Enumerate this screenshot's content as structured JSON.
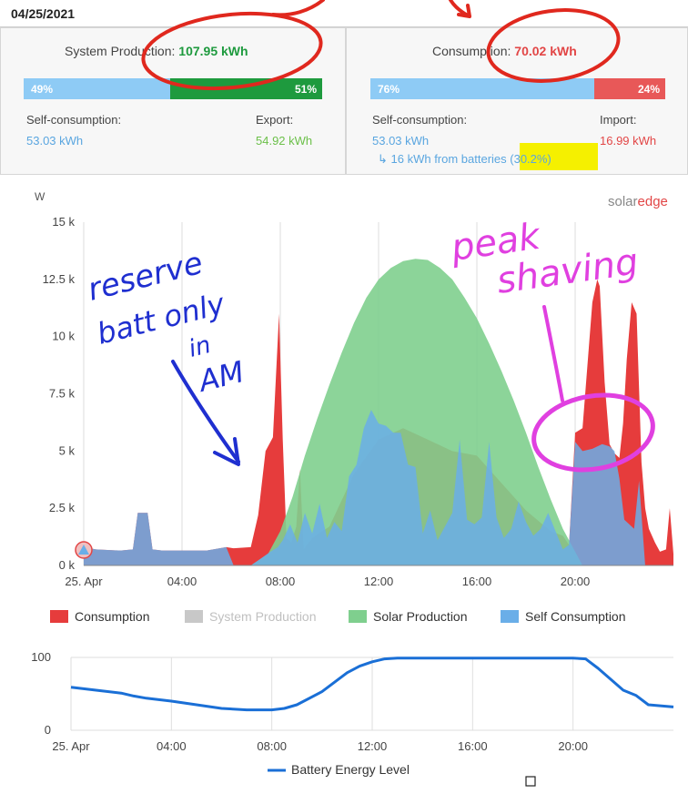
{
  "date": "04/25/2021",
  "production": {
    "label": "System Production:",
    "value": "107.95 kWh",
    "bar": {
      "left_pct_label": "49%",
      "right_pct_label": "51%",
      "left_fraction": 0.49
    },
    "self_consumption_label": "Self-consumption:",
    "self_consumption_value": "53.03 kWh",
    "export_label": "Export:",
    "export_value": "54.92 kWh"
  },
  "consumption": {
    "label": "Consumption:",
    "value": "70.02 kWh",
    "bar": {
      "left_pct_label": "76%",
      "right_pct_label": "24%",
      "left_fraction": 0.76
    },
    "self_consumption_label": "Self-consumption:",
    "self_consumption_value": "53.03 kWh",
    "import_label": "Import:",
    "import_value": "16.99 kWh",
    "batteries_note": "↳ 16 kWh from batteries (30.2%)"
  },
  "brand": {
    "part1": "solar",
    "part2": "edge"
  },
  "annotations": {
    "left_note": [
      "reserve",
      "batt only",
      "in",
      "AM"
    ],
    "right_note": [
      "peak",
      "shaving"
    ]
  },
  "colors": {
    "consumption": "#e63c3c",
    "system_production": "#c8c8c8",
    "solar_production": "#7fcf8e",
    "self_consumption": "#6aaee8",
    "battery_line": "#1a6fd6",
    "export_green": "#1e9a3e",
    "blue_text": "#5aa6e0",
    "red_text": "#e24646",
    "annotation_red": "#e0281e",
    "annotation_blue": "#1f2fd0",
    "annotation_magenta": "#e040e0",
    "highlight_yellow": "#f5f000"
  },
  "chart_data": [
    {
      "type": "area",
      "ylabel": "W",
      "ylim": [
        0,
        15000
      ],
      "y_tick_labels": [
        "0 k",
        "2.5 k",
        "5 k",
        "7.5 k",
        "10 k",
        "12.5 k",
        "15 k"
      ],
      "y_tick_values": [
        0,
        2500,
        5000,
        7500,
        10000,
        12500,
        15000
      ],
      "x_tick_labels": [
        "25. Apr",
        "04:00",
        "08:00",
        "12:00",
        "16:00",
        "20:00"
      ],
      "x_tick_hours": [
        0,
        4,
        8,
        12,
        16,
        20
      ],
      "xlim_hours": [
        0,
        24
      ],
      "legend": [
        "Consumption",
        "System Production",
        "Solar Production",
        "Self Consumption"
      ],
      "legend_placement": "bottom",
      "grid": "vertical",
      "series": [
        {
          "name": "Consumption",
          "hours": [
            0,
            0.5,
            1.5,
            2.0,
            2.2,
            2.6,
            2.8,
            3.2,
            4.0,
            5.0,
            5.8,
            6.1,
            6.8,
            7.1,
            7.4,
            7.7,
            7.95,
            8.1,
            8.25,
            8.45,
            8.65,
            8.8,
            8.95,
            9.3,
            10,
            11,
            12,
            13,
            14,
            15,
            16,
            17,
            18,
            19,
            19.5,
            19.75,
            20.0,
            20.3,
            20.7,
            20.9,
            21.0,
            21.2,
            21.4,
            21.6,
            21.8,
            21.95,
            22.1,
            22.3,
            22.5,
            22.7,
            22.85,
            23.0,
            23.25,
            23.45,
            23.7,
            23.85,
            24.0
          ],
          "values": [
            800,
            700,
            650,
            700,
            2300,
            2300,
            700,
            650,
            650,
            650,
            800,
            750,
            800,
            2200,
            5000,
            5600,
            11000,
            5500,
            1200,
            1000,
            1700,
            4200,
            700,
            1200,
            1700,
            4000,
            5500,
            6000,
            5500,
            5000,
            4800,
            3600,
            2400,
            1500,
            1300,
            900,
            5800,
            6000,
            11500,
            12500,
            12200,
            8000,
            5300,
            4900,
            4700,
            6200,
            9000,
            11500,
            11000,
            4500,
            2500,
            1600,
            1000,
            600,
            700,
            2500,
            500
          ]
        },
        {
          "name": "Solar Production",
          "hours": [
            6.8,
            7.5,
            8.0,
            8.5,
            9.0,
            9.5,
            10.0,
            10.5,
            11.0,
            11.5,
            12.0,
            12.5,
            13.0,
            13.5,
            14.0,
            14.5,
            15.0,
            15.5,
            16.0,
            16.5,
            17.0,
            17.5,
            18.0,
            18.5,
            19.0,
            19.5,
            20.0,
            20.3
          ],
          "values": [
            0,
            500,
            1500,
            3000,
            4800,
            6400,
            7900,
            9300,
            10600,
            11700,
            12500,
            13000,
            13300,
            13400,
            13350,
            13000,
            12500,
            11700,
            10800,
            9700,
            8500,
            7200,
            5800,
            4300,
            2900,
            1600,
            600,
            0
          ]
        },
        {
          "name": "Self Consumption",
          "hours": [
            0,
            0.5,
            1.5,
            2.0,
            2.2,
            2.6,
            2.8,
            3.2,
            4.0,
            5.0,
            5.8,
            6.1,
            6.8,
            7.2,
            7.6,
            7.9,
            8.1,
            8.4,
            8.7,
            9.0,
            9.3,
            9.6,
            9.9,
            10.2,
            10.5,
            10.8,
            11.1,
            11.4,
            11.7,
            12.0,
            12.3,
            12.6,
            12.9,
            13.2,
            13.5,
            13.8,
            14.1,
            14.4,
            14.7,
            15.0,
            15.3,
            15.6,
            15.9,
            16.2,
            16.5,
            16.8,
            17.1,
            17.4,
            17.7,
            18.0,
            18.3,
            18.6,
            18.9,
            19.2,
            19.5,
            19.75,
            20.0,
            20.3,
            20.7,
            21.1,
            21.4,
            21.6,
            21.8,
            22.0,
            22.2,
            22.4,
            22.6,
            22.85
          ],
          "values": [
            800,
            700,
            650,
            700,
            2300,
            2300,
            700,
            650,
            650,
            650,
            800,
            0,
            0,
            300,
            600,
            800,
            1100,
            1800,
            1000,
            2300,
            1400,
            2700,
            1200,
            1900,
            1500,
            3900,
            4400,
            6000,
            6800,
            6200,
            6100,
            5800,
            5800,
            4400,
            4300,
            1400,
            2400,
            1100,
            1700,
            2300,
            5500,
            2000,
            1800,
            2100,
            5400,
            2100,
            1200,
            1600,
            2800,
            1900,
            1300,
            1600,
            2300,
            1500,
            700,
            900,
            5400,
            5000,
            5100,
            5300,
            5200,
            5000,
            3800,
            2000,
            1800,
            1600,
            3700,
            0
          ]
        },
        {
          "name": "System Production",
          "hours": [],
          "values": []
        }
      ]
    },
    {
      "type": "line",
      "ylim": [
        0,
        100
      ],
      "y_tick_labels": [
        "0",
        "100"
      ],
      "y_tick_values": [
        0,
        100
      ],
      "x_tick_labels": [
        "25. Apr",
        "04:00",
        "08:00",
        "12:00",
        "16:00",
        "20:00"
      ],
      "x_tick_hours": [
        0,
        4,
        8,
        12,
        16,
        20
      ],
      "xlim_hours": [
        0,
        24
      ],
      "legend": [
        "Battery Energy Level"
      ],
      "legend_placement": "bottom",
      "series": [
        {
          "name": "Battery Energy Level",
          "hours": [
            0,
            1,
            2,
            2.5,
            3,
            4,
            5,
            6,
            7,
            8,
            8.5,
            9,
            10,
            11,
            11.5,
            12,
            12.5,
            13,
            14,
            16,
            18,
            19,
            20,
            20.5,
            21,
            21.5,
            22,
            22.5,
            23,
            24
          ],
          "values": [
            59,
            55,
            51,
            47,
            44,
            40,
            35,
            30,
            28,
            28,
            30,
            35,
            53,
            79,
            88,
            94,
            98,
            99,
            99,
            99,
            99,
            99,
            99,
            98,
            85,
            70,
            55,
            48,
            35,
            32
          ]
        }
      ]
    }
  ]
}
